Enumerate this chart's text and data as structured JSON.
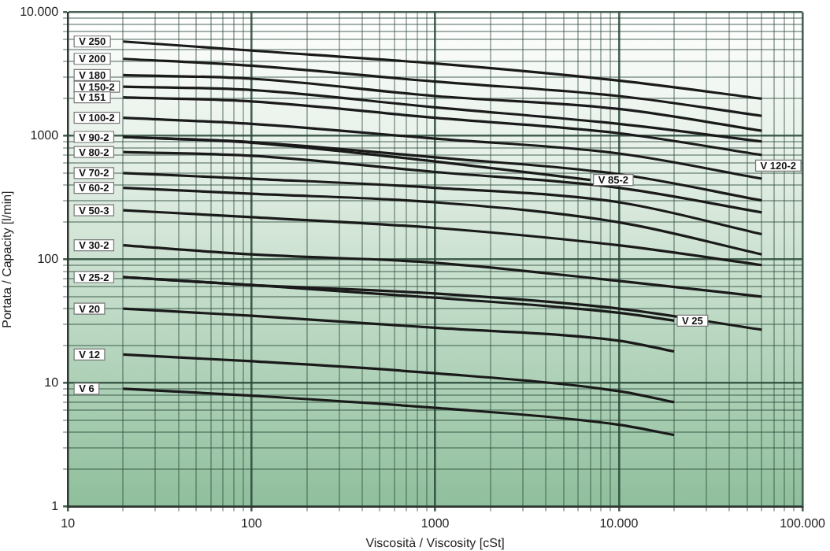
{
  "chart_data": {
    "type": "line",
    "xlabel": "Viscosità / Viscosity [cSt]",
    "ylabel": "Portata / Capacity [l/min]",
    "log": "xy",
    "grid": true,
    "legend": false,
    "marker": "none",
    "xlim": [
      10,
      100000
    ],
    "ylim": [
      1,
      10000
    ],
    "xticks": [
      {
        "value": 10,
        "label": "10"
      },
      {
        "value": 20,
        "label": null
      },
      {
        "value": 30,
        "label": null
      },
      {
        "value": 40,
        "label": null
      },
      {
        "value": 50,
        "label": null
      },
      {
        "value": 60,
        "label": null
      },
      {
        "value": 70,
        "label": null
      },
      {
        "value": 80,
        "label": null
      },
      {
        "value": 90,
        "label": null
      },
      {
        "value": 100,
        "label": "100"
      },
      {
        "value": 200,
        "label": null
      },
      {
        "value": 300,
        "label": null
      },
      {
        "value": 400,
        "label": null
      },
      {
        "value": 500,
        "label": null
      },
      {
        "value": 600,
        "label": null
      },
      {
        "value": 700,
        "label": null
      },
      {
        "value": 800,
        "label": null
      },
      {
        "value": 900,
        "label": null
      },
      {
        "value": 1000,
        "label": "1000"
      },
      {
        "value": 2000,
        "label": null
      },
      {
        "value": 3000,
        "label": null
      },
      {
        "value": 4000,
        "label": null
      },
      {
        "value": 5000,
        "label": null
      },
      {
        "value": 6000,
        "label": null
      },
      {
        "value": 7000,
        "label": null
      },
      {
        "value": 8000,
        "label": null
      },
      {
        "value": 9000,
        "label": null
      },
      {
        "value": 10000,
        "label": "10.000"
      },
      {
        "value": 20000,
        "label": null
      },
      {
        "value": 30000,
        "label": null
      },
      {
        "value": 40000,
        "label": null
      },
      {
        "value": 50000,
        "label": null
      },
      {
        "value": 60000,
        "label": null
      },
      {
        "value": 70000,
        "label": null
      },
      {
        "value": 80000,
        "label": null
      },
      {
        "value": 90000,
        "label": null
      },
      {
        "value": 100000,
        "label": "100.000"
      }
    ],
    "yticks": [
      {
        "value": 1,
        "label": "1"
      },
      {
        "value": 2,
        "label": null
      },
      {
        "value": 3,
        "label": null
      },
      {
        "value": 4,
        "label": null
      },
      {
        "value": 5,
        "label": null
      },
      {
        "value": 6,
        "label": null
      },
      {
        "value": 7,
        "label": null
      },
      {
        "value": 8,
        "label": null
      },
      {
        "value": 9,
        "label": null
      },
      {
        "value": 10,
        "label": "10"
      },
      {
        "value": 20,
        "label": null
      },
      {
        "value": 30,
        "label": null
      },
      {
        "value": 40,
        "label": null
      },
      {
        "value": 50,
        "label": null
      },
      {
        "value": 60,
        "label": null
      },
      {
        "value": 70,
        "label": null
      },
      {
        "value": 80,
        "label": null
      },
      {
        "value": 90,
        "label": null
      },
      {
        "value": 100,
        "label": "100"
      },
      {
        "value": 200,
        "label": null
      },
      {
        "value": 300,
        "label": null
      },
      {
        "value": 400,
        "label": null
      },
      {
        "value": 500,
        "label": null
      },
      {
        "value": 600,
        "label": null
      },
      {
        "value": 700,
        "label": null
      },
      {
        "value": 800,
        "label": null
      },
      {
        "value": 900,
        "label": null
      },
      {
        "value": 1000,
        "label": "1000"
      },
      {
        "value": 2000,
        "label": null
      },
      {
        "value": 3000,
        "label": null
      },
      {
        "value": 4000,
        "label": null
      },
      {
        "value": 5000,
        "label": null
      },
      {
        "value": 6000,
        "label": null
      },
      {
        "value": 7000,
        "label": null
      },
      {
        "value": 8000,
        "label": null
      },
      {
        "value": 9000,
        "label": null
      },
      {
        "value": 10000,
        "label": "10.000"
      }
    ],
    "series": [
      {
        "name": "V 250",
        "color": "#1a1a1a",
        "x": [
          20,
          100,
          1000,
          10000,
          60000
        ],
        "values": [
          5800,
          4900,
          3850,
          2800,
          2000
        ]
      },
      {
        "name": "V 200",
        "color": "#1a1a1a",
        "x": [
          20,
          100,
          1000,
          10000,
          60000
        ],
        "values": [
          4200,
          3700,
          2750,
          2100,
          1450
        ]
      },
      {
        "name": "V 180",
        "color": "#1a1a1a",
        "x": [
          20,
          100,
          1000,
          10000,
          60000
        ],
        "values": [
          3100,
          2900,
          2100,
          1650,
          1100
        ]
      },
      {
        "name": "V 150-2",
        "color": "#1a1a1a",
        "x": [
          20,
          100,
          1000,
          10000,
          60000
        ],
        "values": [
          2500,
          2350,
          1700,
          1250,
          900
        ]
      },
      {
        "name": "V 151",
        "color": "#1a1a1a",
        "x": [
          20,
          100,
          1000,
          10000,
          60000
        ],
        "values": [
          2050,
          1900,
          1400,
          1050,
          700
        ]
      },
      {
        "name": "V 100-2",
        "color": "#1a1a1a",
        "x": [
          20,
          100,
          1000,
          10000,
          60000
        ],
        "values": [
          1400,
          1250,
          950,
          720,
          450
        ]
      },
      {
        "name": "V 90-2",
        "color": "#1a1a1a",
        "x": [
          20,
          100,
          1000,
          10000,
          60000
        ],
        "values": [
          980,
          890,
          670,
          490,
          300
        ]
      },
      {
        "name": "V 85-2",
        "color": "#1a1a1a",
        "x": [
          20,
          100,
          1000,
          7000
        ],
        "values": [
          980,
          880,
          620,
          440
        ]
      },
      {
        "name": "V 80-2",
        "color": "#1a1a1a",
        "x": [
          20,
          100,
          1000,
          10000,
          60000
        ],
        "values": [
          740,
          690,
          510,
          380,
          240
        ]
      },
      {
        "name": "V 70-2",
        "color": "#1a1a1a",
        "x": [
          20,
          100,
          1000,
          10000,
          60000
        ],
        "values": [
          500,
          450,
          380,
          290,
          160
        ]
      },
      {
        "name": "V 60-2",
        "color": "#1a1a1a",
        "x": [
          20,
          100,
          1000,
          10000,
          60000
        ],
        "values": [
          380,
          340,
          290,
          200,
          110
        ]
      },
      {
        "name": "V 50-3",
        "color": "#1a1a1a",
        "x": [
          20,
          100,
          1000,
          10000,
          60000
        ],
        "values": [
          250,
          220,
          180,
          130,
          90
        ]
      },
      {
        "name": "V 30-2",
        "color": "#1a1a1a",
        "x": [
          20,
          100,
          1000,
          10000,
          60000
        ],
        "values": [
          130,
          110,
          94,
          67,
          50
        ]
      },
      {
        "name": "V 25-2",
        "color": "#1a1a1a",
        "x": [
          20,
          100,
          1000,
          10000,
          60000
        ],
        "values": [
          72,
          62,
          53,
          40,
          27
        ]
      },
      {
        "name": "V 25",
        "color": "#1a1a1a",
        "x": [
          20,
          100,
          1000,
          10000,
          20000
        ],
        "values": [
          72,
          62,
          49,
          37,
          32
        ]
      },
      {
        "name": "V 20",
        "color": "#1a1a1a",
        "x": [
          20,
          100,
          1000,
          10000,
          20000
        ],
        "values": [
          40,
          35,
          28,
          22,
          18
        ]
      },
      {
        "name": "V 12",
        "color": "#1a1a1a",
        "x": [
          20,
          100,
          1000,
          10000,
          20000
        ],
        "values": [
          17,
          15,
          12,
          8.6,
          7
        ]
      },
      {
        "name": "V 6",
        "color": "#1a1a1a",
        "x": [
          20,
          100,
          1000,
          10000,
          20000
        ],
        "values": [
          9,
          7.9,
          6.3,
          4.6,
          3.8
        ]
      }
    ],
    "annotations": [
      "V 120-2"
    ]
  }
}
